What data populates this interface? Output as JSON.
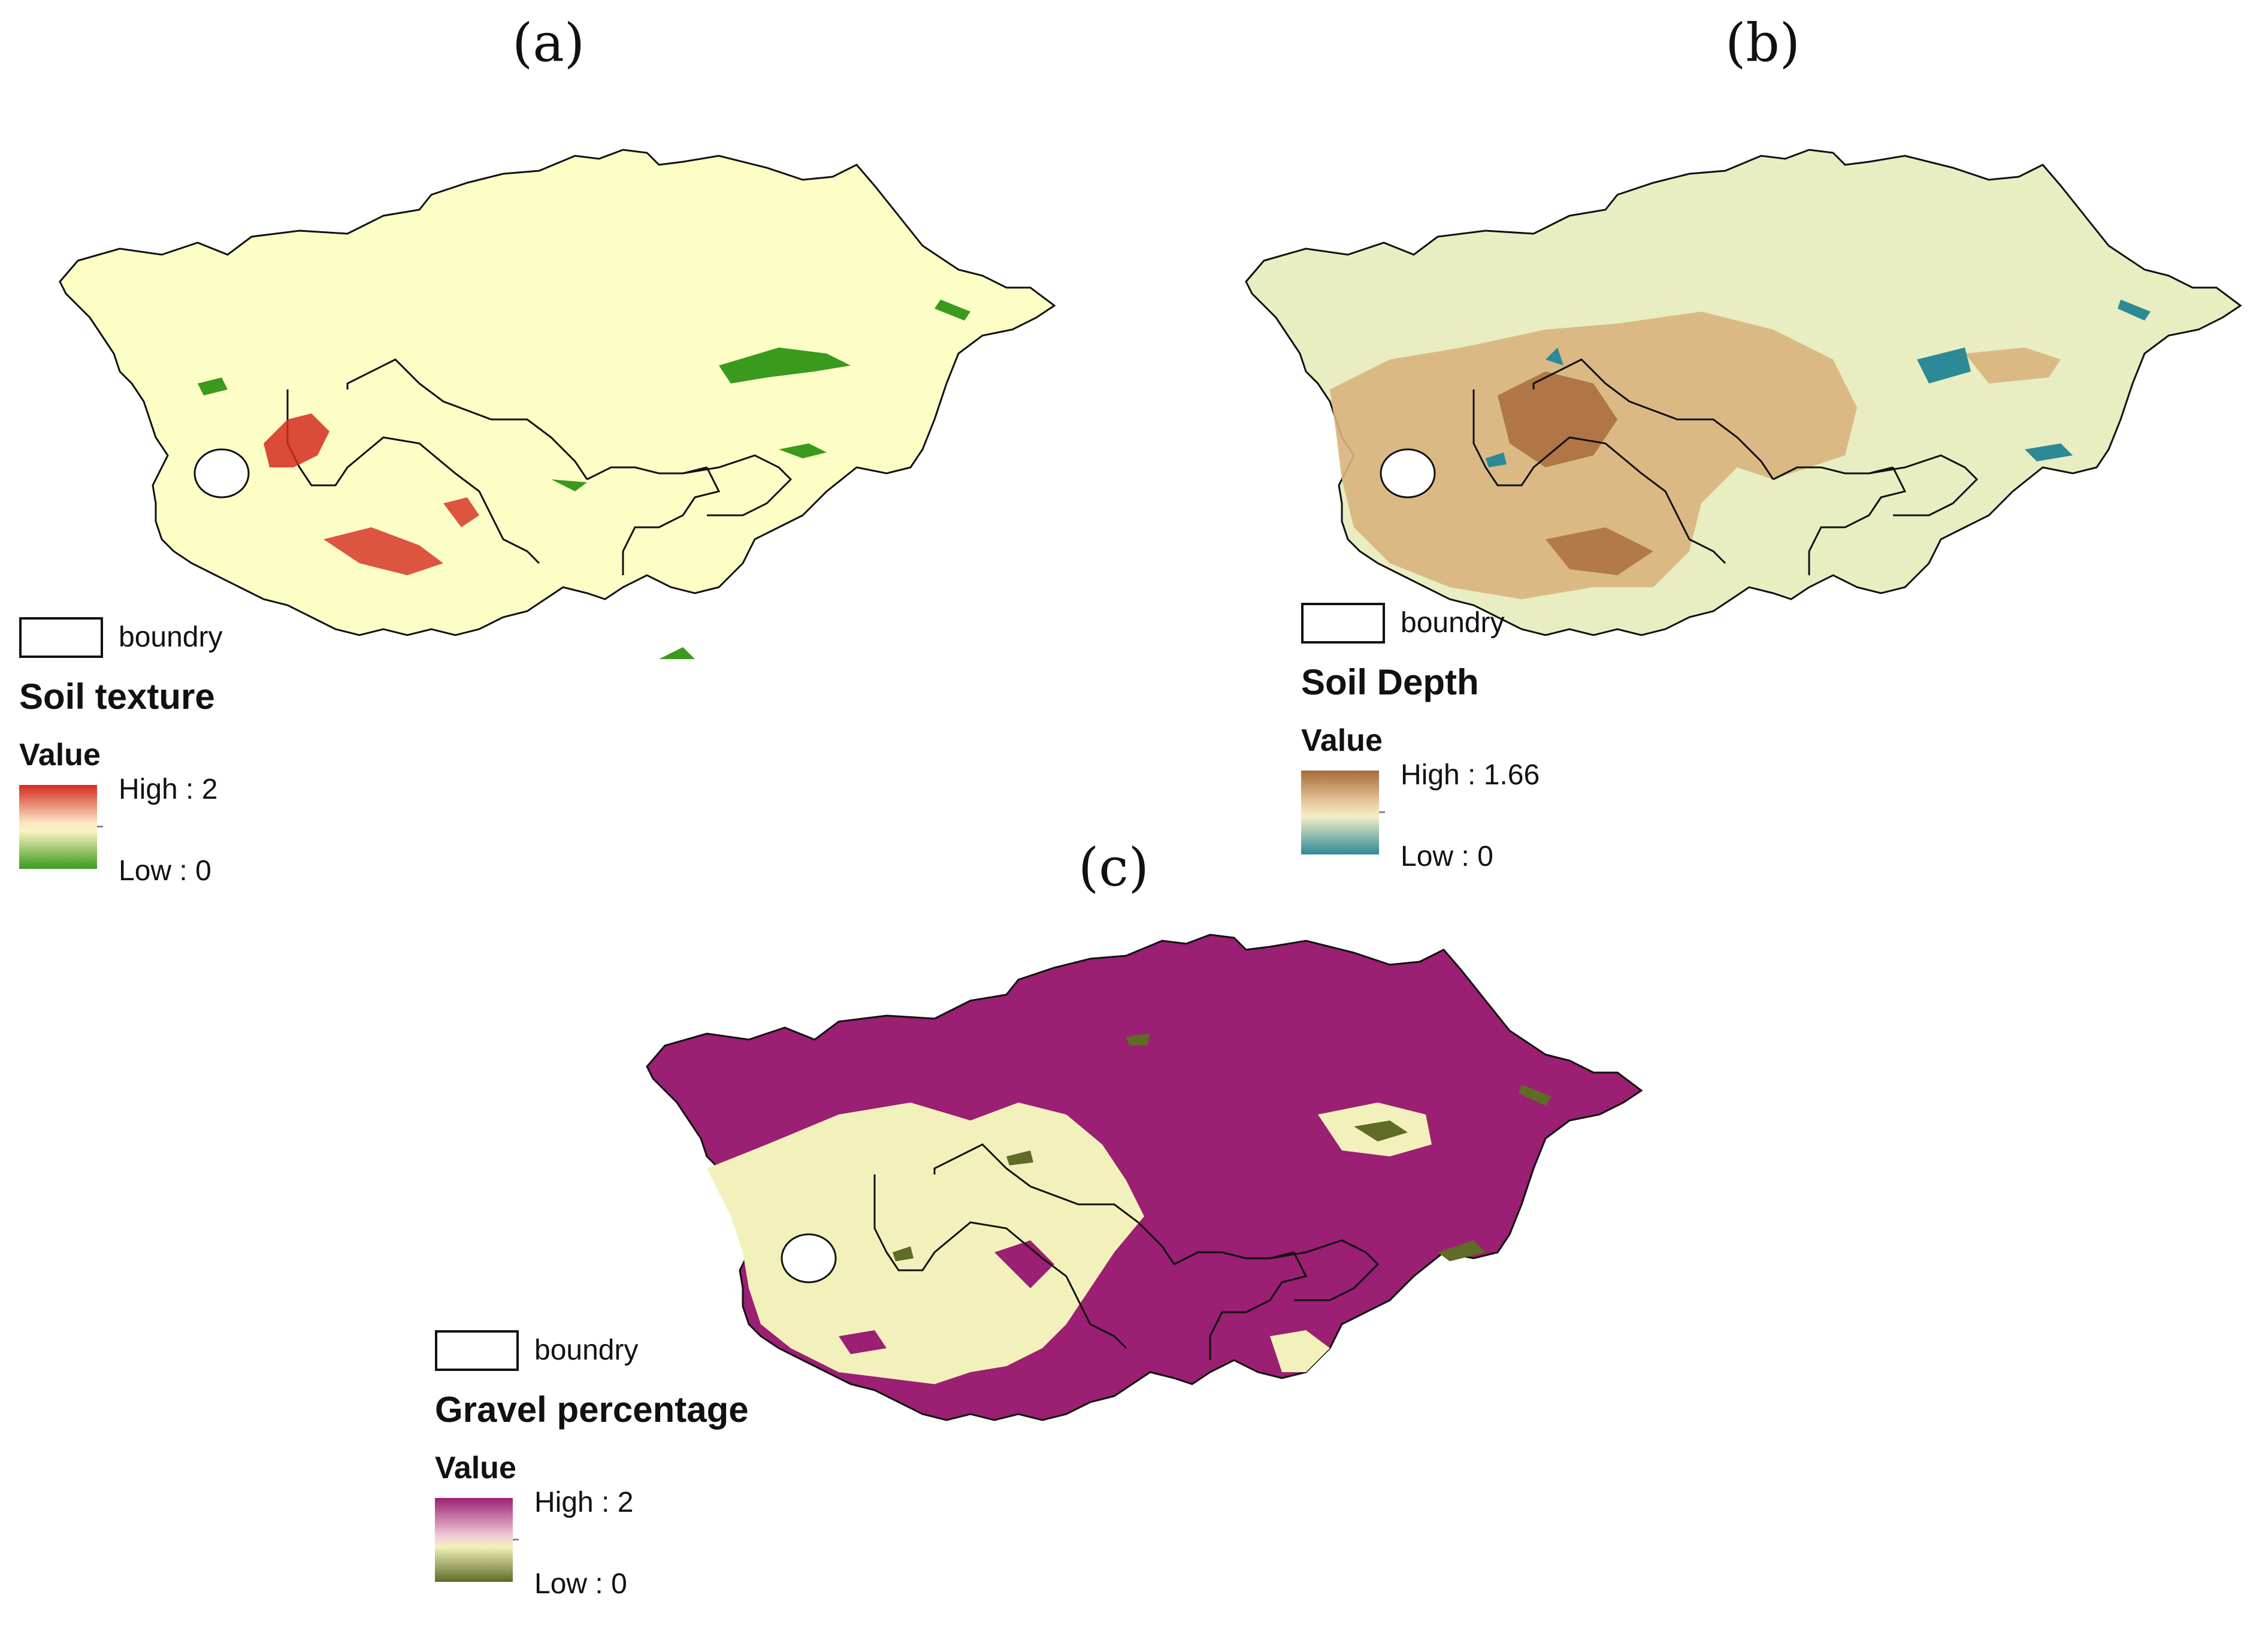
{
  "panels": [
    {
      "label": "(a)",
      "legend": {
        "boundary": "boundry",
        "title": "Soil texture",
        "value": "Value",
        "high": "High : 2",
        "low": "Low : 0"
      },
      "colors": {
        "base": "#fdfdc6",
        "high": "#d42b1f",
        "mid": "#fbf3c2",
        "low": "#3a9a1d"
      }
    },
    {
      "label": "(b)",
      "legend": {
        "boundary": "boundry",
        "title": "Soil Depth",
        "value": "Value",
        "high": "High : 1.66",
        "low": "Low : 0"
      },
      "colors": {
        "base": "#e8eec2",
        "high": "#a86a3a",
        "mid": "#f3efc9",
        "low": "#2b8a95"
      }
    },
    {
      "label": "(c)",
      "legend": {
        "boundary": "boundry",
        "title": "Gravel percentage",
        "value": "Value",
        "high": "High : 2",
        "low": "Low : 0"
      },
      "colors": {
        "base": "#9b1f72",
        "high": "#9b1f72",
        "mid": "#f3f1bb",
        "low": "#5f6b26"
      }
    }
  ]
}
